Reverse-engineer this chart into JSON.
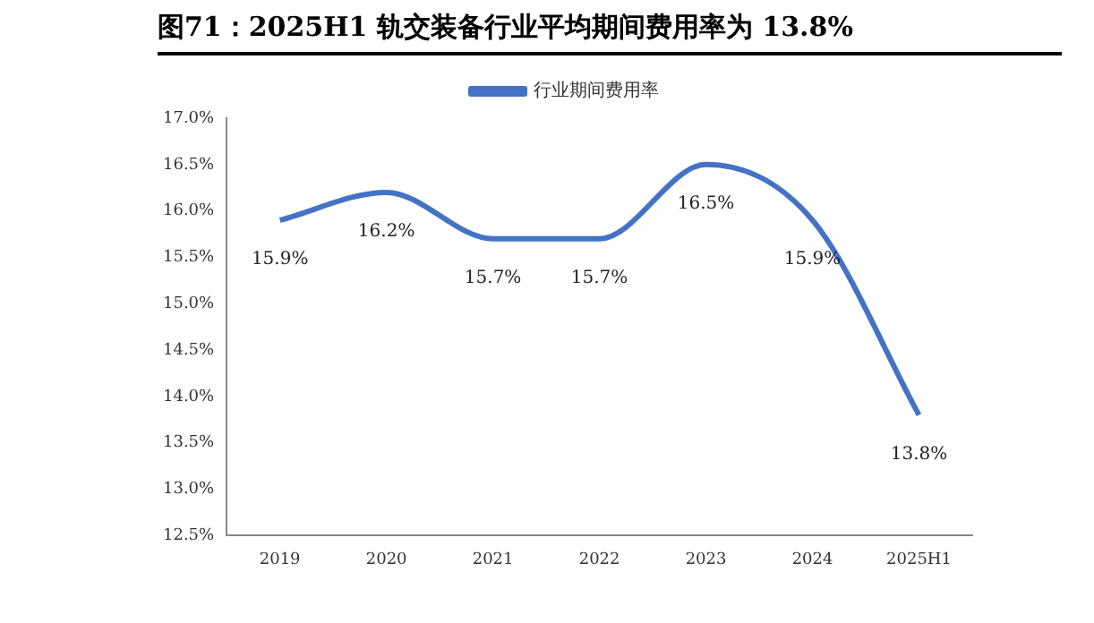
{
  "chart_data": {
    "type": "line",
    "title": "图71：2025H1 轨交装备行业平均期间费用率为 13.8%",
    "categories": [
      "2019",
      "2020",
      "2021",
      "2022",
      "2023",
      "2024",
      "2025H1"
    ],
    "series": [
      {
        "name": "行业期间费用率",
        "color": "#4472c4",
        "values": [
          15.9,
          16.2,
          15.7,
          15.7,
          16.5,
          15.9,
          13.8
        ],
        "value_labels": [
          "15.9%",
          "16.2%",
          "15.7%",
          "15.7%",
          "16.5%",
          "15.9%",
          "13.8%"
        ]
      }
    ],
    "ylim": [
      12.5,
      17.0
    ],
    "yticks": [
      {
        "value": 12.5,
        "label": "12.5%"
      },
      {
        "value": 13.0,
        "label": "13.0%"
      },
      {
        "value": 13.5,
        "label": "13.5%"
      },
      {
        "value": 14.0,
        "label": "14.0%"
      },
      {
        "value": 14.5,
        "label": "14.5%"
      },
      {
        "value": 15.0,
        "label": "15.0%"
      },
      {
        "value": 15.5,
        "label": "15.5%"
      },
      {
        "value": 16.0,
        "label": "16.0%"
      },
      {
        "value": 16.5,
        "label": "16.5%"
      },
      {
        "value": 17.0,
        "label": "17.0%"
      }
    ],
    "grid": false,
    "legend": "top",
    "marker": "none",
    "line_style": "solid"
  }
}
